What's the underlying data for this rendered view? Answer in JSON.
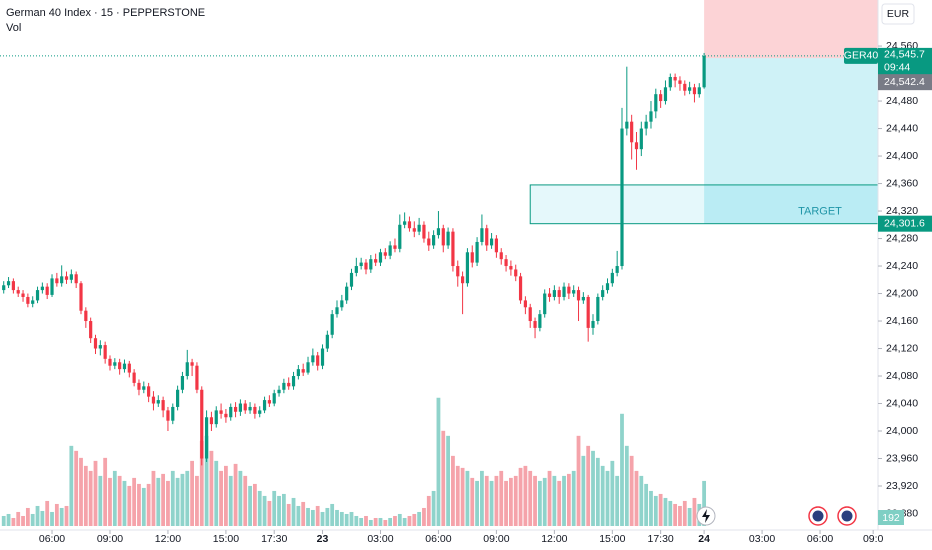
{
  "chart_data": {
    "type": "candlestick",
    "title": "German 40 Index · 15 · PEPPERSTONE",
    "volume_label": "Vol",
    "currency": "EUR",
    "symbol": "GER40",
    "last_price": {
      "value": 24545.7,
      "label": "24,545.7"
    },
    "countdown": "09:44",
    "reference_price": {
      "value": 24542.4,
      "label": "24,542.4"
    },
    "target_price": {
      "value": 24301.6,
      "label": "24,301.6"
    },
    "target_text": "TARGET",
    "target_zone": [
      24301.6,
      24358
    ],
    "volume_value_label": "192",
    "up_color": "#089981",
    "down_color": "#f23645",
    "up_volume_color": "#8fd3cb",
    "down_volume_color": "#f5a3aa",
    "xlim": [
      -0.77,
      181
    ],
    "ylim": [
      23856,
      24627
    ],
    "vlim": [
      0,
      525
    ],
    "xticks": [
      {
        "value": 10,
        "label": "06:00"
      },
      {
        "value": 22,
        "label": "09:00"
      },
      {
        "value": 34,
        "label": "12:00"
      },
      {
        "value": 46,
        "label": "15:00"
      },
      {
        "value": 56,
        "label": "17:30"
      },
      {
        "value": 66,
        "label": "23"
      },
      {
        "value": 78,
        "label": "03:00"
      },
      {
        "value": 90,
        "label": "06:00"
      },
      {
        "value": 102,
        "label": "09:00"
      },
      {
        "value": 114,
        "label": "12:00"
      },
      {
        "value": 126,
        "label": "15:00"
      },
      {
        "value": 136,
        "label": "17:30"
      },
      {
        "value": 145,
        "label": "24"
      },
      {
        "value": 157,
        "label": "03:00"
      },
      {
        "value": 169,
        "label": "06:00"
      },
      {
        "value": 180,
        "label": "09:0"
      }
    ],
    "yticks": [
      {
        "value": 23880,
        "label": "23,880"
      },
      {
        "value": 23920,
        "label": "23,920"
      },
      {
        "value": 23960,
        "label": "23,960"
      },
      {
        "value": 24000,
        "label": "24,000"
      },
      {
        "value": 24040,
        "label": "24,040"
      },
      {
        "value": 24080,
        "label": "24,080"
      },
      {
        "value": 24120,
        "label": "24,120"
      },
      {
        "value": 24160,
        "label": "24,160"
      },
      {
        "value": 24200,
        "label": "24,200"
      },
      {
        "value": 24240,
        "label": "24,240"
      },
      {
        "value": 24280,
        "label": "24,280"
      },
      {
        "value": 24320,
        "label": "24,320"
      },
      {
        "value": 24360,
        "label": "24,360"
      },
      {
        "value": 24400,
        "label": "24,400"
      },
      {
        "value": 24440,
        "label": "24,440"
      },
      {
        "value": 24480,
        "label": "24,480"
      },
      {
        "value": 24520,
        "label": "24,520"
      },
      {
        "value": 24560,
        "label": "24,560"
      }
    ],
    "open": [
      24205,
      24212,
      24218,
      24205,
      24200,
      24195,
      24185,
      24190,
      24205,
      24210,
      24198,
      24222,
      24215,
      24225,
      24220,
      24228,
      24215,
      24175,
      24160,
      24135,
      24120,
      24125,
      24105,
      24095,
      24100,
      24090,
      24098,
      24085,
      24070,
      24060,
      24065,
      24050,
      24040,
      24045,
      24030,
      24015,
      24035,
      24060,
      24080,
      24100,
      24095,
      24060,
      23960,
      24020,
      24010,
      24030,
      24025,
      24020,
      24035,
      24028,
      24040,
      24030,
      24035,
      24025,
      24030,
      24045,
      24040,
      24055,
      24060,
      24070,
      24065,
      24080,
      24090,
      24085,
      24100,
      24110,
      24095,
      24120,
      24140,
      24170,
      24180,
      24190,
      24210,
      24230,
      24240,
      24245,
      24235,
      24250,
      24245,
      24260,
      24255,
      24270,
      24265,
      24300,
      24305,
      24295,
      24290,
      24300,
      24280,
      24270,
      24285,
      24295,
      24270,
      24290,
      24240,
      24225,
      24215,
      24260,
      24245,
      24275,
      24295,
      24270,
      24280,
      24260,
      24250,
      24240,
      24235,
      24225,
      24190,
      24180,
      24160,
      24150,
      24170,
      24200,
      24195,
      24205,
      24195,
      24210,
      24200,
      24205,
      24190,
      24195,
      24150,
      24160,
      24195,
      24205,
      24215,
      24230,
      24240,
      24440,
      24450,
      24420,
      24410,
      24440,
      24450,
      24465,
      24490,
      24480,
      24500,
      24515,
      24510,
      24505,
      24495,
      24500,
      24490,
      24500
    ],
    "high": [
      24218,
      24224,
      24222,
      24210,
      24205,
      24200,
      24196,
      24210,
      24216,
      24215,
      24228,
      24230,
      24241,
      24232,
      24235,
      24232,
      24218,
      24180,
      24165,
      24140,
      24132,
      24130,
      24110,
      24106,
      24105,
      24104,
      24102,
      24090,
      24075,
      24072,
      24070,
      24058,
      24052,
      24050,
      24035,
      24040,
      24066,
      24086,
      24118,
      24105,
      24100,
      24065,
      24030,
      24028,
      24036,
      24040,
      24032,
      24040,
      24042,
      24046,
      24045,
      24042,
      24040,
      24036,
      24050,
      24052,
      24060,
      24066,
      24076,
      24078,
      24086,
      24096,
      24098,
      24108,
      24120,
      24115,
      24126,
      24146,
      24176,
      24190,
      24198,
      24216,
      24236,
      24252,
      24252,
      24250,
      24256,
      24258,
      24265,
      24266,
      24276,
      24280,
      24315,
      24318,
      24312,
      24305,
      24310,
      24305,
      24290,
      24292,
      24320,
      24300,
      24296,
      24295,
      24248,
      24232,
      24266,
      24270,
      24282,
      24315,
      24300,
      24288,
      24285,
      24266,
      24256,
      24248,
      24242,
      24230,
      24196,
      24185,
      24165,
      24176,
      24206,
      24208,
      24212,
      24210,
      24216,
      24215,
      24212,
      24210,
      24202,
      24198,
      24170,
      24200,
      24212,
      24222,
      24236,
      24262,
      24470,
      24530,
      24460,
      24435,
      24450,
      24460,
      24480,
      24498,
      24496,
      24510,
      24520,
      24520,
      24516,
      24510,
      24508,
      24505,
      24506,
      24550
    ],
    "low": [
      24200,
      24208,
      24200,
      24195,
      24188,
      24180,
      24180,
      24186,
      24200,
      24192,
      24195,
      24210,
      24210,
      24214,
      24215,
      24208,
      24170,
      24150,
      24128,
      24112,
      24110,
      24098,
      24088,
      24090,
      24082,
      24085,
      24078,
      24065,
      24052,
      24055,
      24042,
      24030,
      24035,
      24020,
      24000,
      24010,
      24030,
      24055,
      24075,
      24080,
      24055,
      23950,
      23955,
      24000,
      24005,
      24018,
      24012,
      24015,
      24020,
      24022,
      24025,
      24025,
      24018,
      24020,
      24026,
      24035,
      24036,
      24050,
      24055,
      24060,
      24060,
      24075,
      24080,
      24082,
      24095,
      24088,
      24090,
      24115,
      24135,
      24165,
      24175,
      24185,
      24205,
      24225,
      24235,
      24228,
      24230,
      24240,
      24240,
      24250,
      24250,
      24260,
      24260,
      24295,
      24290,
      24282,
      24285,
      24274,
      24262,
      24265,
      24280,
      24260,
      24265,
      24232,
      24210,
      24170,
      24210,
      24238,
      24240,
      24270,
      24262,
      24265,
      24252,
      24242,
      24232,
      24226,
      24218,
      24185,
      24170,
      24150,
      24135,
      24145,
      24165,
      24188,
      24190,
      24185,
      24190,
      24192,
      24195,
      24160,
      24185,
      24130,
      24140,
      24155,
      24190,
      24200,
      24210,
      24225,
      24235,
      24430,
      24395,
      24380,
      24400,
      24430,
      24440,
      24455,
      24470,
      24475,
      24495,
      24500,
      24495,
      24488,
      24490,
      24478,
      24485,
      24498
    ],
    "close": [
      24212,
      24218,
      24205,
      24200,
      24195,
      24185,
      24190,
      24205,
      24210,
      24198,
      24222,
      24215,
      24225,
      24220,
      24228,
      24215,
      24175,
      24160,
      24135,
      24120,
      24125,
      24105,
      24095,
      24100,
      24090,
      24098,
      24085,
      24070,
      24060,
      24065,
      24050,
      24040,
      24045,
      24030,
      24015,
      24035,
      24060,
      24080,
      24100,
      24095,
      24060,
      23960,
      24020,
      24010,
      24030,
      24025,
      24020,
      24035,
      24028,
      24040,
      24030,
      24035,
      24025,
      24030,
      24045,
      24040,
      24055,
      24060,
      24070,
      24065,
      24080,
      24090,
      24085,
      24100,
      24110,
      24095,
      24120,
      24140,
      24170,
      24180,
      24190,
      24210,
      24230,
      24240,
      24245,
      24235,
      24250,
      24245,
      24260,
      24255,
      24270,
      24265,
      24300,
      24305,
      24295,
      24290,
      24300,
      24280,
      24270,
      24285,
      24295,
      24270,
      24290,
      24240,
      24225,
      24215,
      24260,
      24245,
      24275,
      24295,
      24270,
      24280,
      24260,
      24250,
      24240,
      24235,
      24225,
      24190,
      24180,
      24160,
      24150,
      24170,
      24200,
      24195,
      24205,
      24195,
      24210,
      24200,
      24205,
      24190,
      24195,
      24150,
      24160,
      24195,
      24205,
      24215,
      24230,
      24240,
      24440,
      24450,
      24420,
      24410,
      24440,
      24450,
      24465,
      24490,
      24480,
      24500,
      24515,
      24510,
      24505,
      24495,
      24500,
      24490,
      24500,
      24545.7
    ],
    "volume": [
      10,
      12,
      8,
      14,
      10,
      18,
      12,
      20,
      15,
      25,
      14,
      22,
      18,
      20,
      80,
      75,
      68,
      60,
      55,
      65,
      50,
      68,
      48,
      55,
      50,
      45,
      40,
      48,
      42,
      38,
      42,
      55,
      48,
      52,
      45,
      55,
      48,
      52,
      55,
      65,
      50,
      85,
      90,
      75,
      65,
      55,
      60,
      50,
      62,
      55,
      50,
      40,
      42,
      35,
      30,
      25,
      35,
      30,
      32,
      22,
      28,
      20,
      24,
      18,
      16,
      20,
      14,
      18,
      22,
      16,
      14,
      12,
      14,
      10,
      8,
      10,
      6,
      8,
      8,
      6,
      8,
      10,
      12,
      8,
      10,
      12,
      14,
      18,
      30,
      35,
      128,
      95,
      90,
      70,
      60,
      58,
      55,
      48,
      45,
      55,
      50,
      45,
      50,
      55,
      45,
      48,
      50,
      58,
      60,
      55,
      50,
      45,
      48,
      55,
      50,
      45,
      50,
      52,
      55,
      90,
      70,
      80,
      75,
      68,
      60,
      55,
      65,
      50,
      112,
      80,
      70,
      55,
      50,
      42,
      35,
      30,
      32,
      28,
      25,
      22,
      20,
      25,
      18,
      28,
      22,
      45
    ]
  }
}
